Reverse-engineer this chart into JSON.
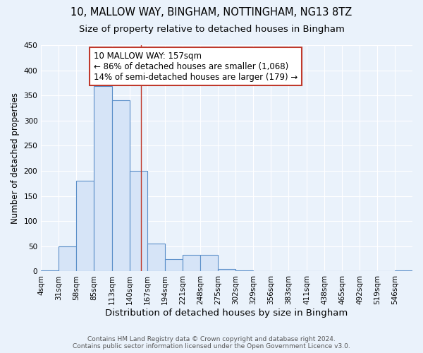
{
  "title1": "10, MALLOW WAY, BINGHAM, NOTTINGHAM, NG13 8TZ",
  "title2": "Size of property relative to detached houses in Bingham",
  "xlabel": "Distribution of detached houses by size in Bingham",
  "ylabel": "Number of detached properties",
  "footer": "Contains HM Land Registry data © Crown copyright and database right 2024.\nContains public sector information licensed under the Open Government Licence v3.0.",
  "bin_labels": [
    "4sqm",
    "31sqm",
    "58sqm",
    "85sqm",
    "113sqm",
    "140sqm",
    "167sqm",
    "194sqm",
    "221sqm",
    "248sqm",
    "275sqm",
    "302sqm",
    "329sqm",
    "356sqm",
    "383sqm",
    "411sqm",
    "438sqm",
    "465sqm",
    "492sqm",
    "519sqm",
    "546sqm"
  ],
  "bar_values": [
    2,
    50,
    180,
    368,
    340,
    200,
    55,
    25,
    33,
    33,
    5,
    2,
    0,
    0,
    0,
    0,
    0,
    0,
    0,
    0,
    2
  ],
  "bin_edges": [
    4,
    31,
    58,
    85,
    113,
    140,
    167,
    194,
    221,
    248,
    275,
    302,
    329,
    356,
    383,
    411,
    438,
    465,
    492,
    519,
    546,
    573
  ],
  "bar_color": "#d6e4f7",
  "bar_edge_color": "#5b8fc9",
  "property_size": 157,
  "vline_color": "#c0392b",
  "annotation_line1": "10 MALLOW WAY: 157sqm",
  "annotation_line2": "← 86% of detached houses are smaller (1,068)",
  "annotation_line3": "14% of semi-detached houses are larger (179) →",
  "annotation_box_color": "white",
  "annotation_box_edge": "#c0392b",
  "bg_color": "#eaf2fb",
  "plot_bg_color": "#eaf2fb",
  "grid_color": "#ffffff",
  "ylim": [
    0,
    450
  ],
  "yticks": [
    0,
    50,
    100,
    150,
    200,
    250,
    300,
    350,
    400,
    450
  ],
  "title1_fontsize": 10.5,
  "title2_fontsize": 9.5,
  "xlabel_fontsize": 9.5,
  "ylabel_fontsize": 8.5,
  "tick_fontsize": 7.5,
  "annotation_fontsize": 8.5,
  "footer_fontsize": 6.5
}
